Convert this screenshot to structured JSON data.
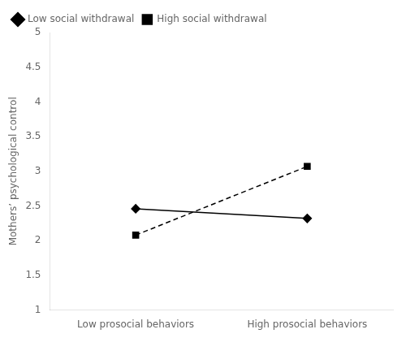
{
  "chart_data": {
    "type": "line",
    "categories": [
      "Low prosocial behaviors",
      "High prosocial behaviors"
    ],
    "series": [
      {
        "name": "Low social withdrawal",
        "color": "#000000",
        "values": [
          2.46,
          2.32
        ],
        "marker": "diamond",
        "line_style": "solid"
      },
      {
        "name": "High social withdrawal",
        "color": "#000000",
        "values": [
          2.08,
          3.07
        ],
        "marker": "square",
        "line_style": "dashed"
      }
    ],
    "ylabel": "Mothers’ psychological control",
    "ylim": [
      1,
      5
    ],
    "yticks": [
      1,
      1.5,
      2,
      2.5,
      3,
      3.5,
      4,
      4.5,
      5
    ],
    "grid": false,
    "legend": "upper left"
  }
}
